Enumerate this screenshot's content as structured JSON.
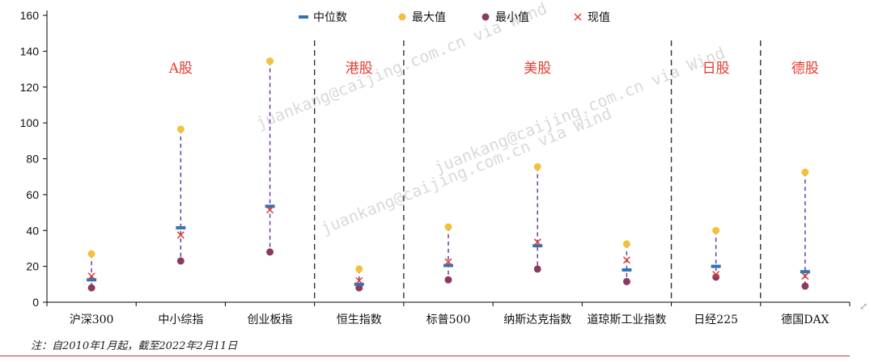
{
  "chart_data": {
    "type": "scatter",
    "categories": [
      "沪深300",
      "中小综指",
      "创业板指",
      "恒生指数",
      "标普500",
      "纳斯达克指数",
      "道琼斯工业指数",
      "日经225",
      "德国DAX"
    ],
    "series": [
      {
        "name": "中位数",
        "marker": "dash",
        "color": "#2e75b6",
        "values": [
          12.5,
          41.5,
          53.5,
          10.0,
          20.5,
          31.5,
          18.0,
          20.0,
          17.0
        ]
      },
      {
        "name": "最大值",
        "marker": "circle",
        "color": "#f2c13b",
        "values": [
          27.0,
          96.5,
          134.5,
          18.5,
          42.0,
          75.5,
          32.5,
          40.0,
          72.5
        ]
      },
      {
        "name": "最小值",
        "marker": "circle",
        "color": "#8b3a62",
        "values": [
          8.0,
          23.0,
          28.0,
          8.0,
          12.5,
          18.5,
          11.5,
          14.0,
          9.0
        ]
      },
      {
        "name": "现值",
        "marker": "x",
        "color": "#e03c31",
        "values": [
          14.5,
          37.5,
          51.5,
          12.0,
          22.5,
          33.5,
          23.5,
          15.5,
          14.5
        ]
      }
    ],
    "ylim": [
      0,
      160
    ],
    "yticks": [
      0,
      20,
      40,
      60,
      80,
      100,
      120,
      140,
      160
    ],
    "group_labels": [
      {
        "label": "A股",
        "from": 0,
        "to": 2
      },
      {
        "label": "港股",
        "from": 3,
        "to": 3
      },
      {
        "label": "美股",
        "from": 4,
        "to": 6
      },
      {
        "label": "日股",
        "from": 7,
        "to": 7
      },
      {
        "label": "德股",
        "from": 8,
        "to": 8
      }
    ],
    "separators_after": [
      2,
      3,
      6,
      7
    ],
    "legend_position": "top-center",
    "grid": false,
    "range_line_color": "#6a3fa0",
    "group_label_color": "#e03c31",
    "axis_color": "#000000"
  },
  "note": "注：自2010年1月起，截至2022年2月11日",
  "watermark": "juankang@caijing.com.cn via Wind"
}
